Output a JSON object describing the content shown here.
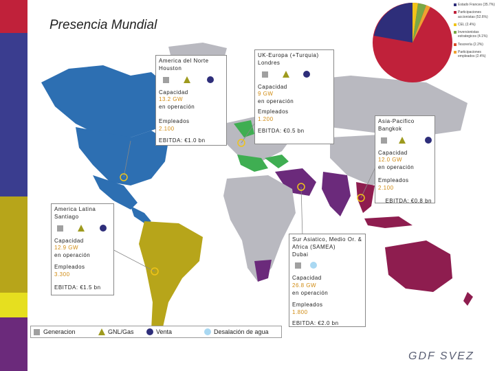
{
  "title": "Presencia Mundial",
  "logo": "GDF SVEZ",
  "colors": {
    "sidebar": "#3a3d8f",
    "north_america": "#2d6fb2",
    "latin_america": "#b7a51a",
    "europe": "#3fae52",
    "asia_pacific": "#8e1d4f",
    "samea": "#6b2a7b",
    "other_land": "#b9b9c0",
    "value_text": "#d08a10"
  },
  "boxes": {
    "north_america": {
      "region": "America del Norte",
      "city": "Houston",
      "cap_label": "Capacidad",
      "cap_value": "13.2 GW",
      "op_label": "en operación",
      "emp_label": "Empleados",
      "emp_value": "2.100",
      "ebitda": "EBITDA: €1.0 bn"
    },
    "uk_europe": {
      "region": "UK-Europa (+Turquia)",
      "city": "Londres",
      "cap_label": "Capacidad",
      "cap_value": "9 GW",
      "op_label": "en operación",
      "emp_label": "Empleados",
      "emp_value": "1.200",
      "ebitda": "EBITDA: €0.5 bn"
    },
    "asia_pacific": {
      "region": "Asia-Pacifico",
      "city": "Bangkok",
      "cap_label": "Capacidad",
      "cap_value": "12.0 GW",
      "op_label": "en operación",
      "emp_label": "Empleados",
      "emp_value": "2.100",
      "ebitda": "EBITDA: €0.8 bn"
    },
    "latin_america": {
      "region": "America Latina",
      "city": "Santiago",
      "cap_label": "Capacidad",
      "cap_value": "12.9 GW",
      "op_label": "en operación",
      "emp_label": "Empleados",
      "emp_value": "3.300",
      "ebitda": "EBITDA: €1.5 bn"
    },
    "samea": {
      "region": "Sur Asiatico, Medio Or. & Africa (SAMEA)",
      "city": "Dubai",
      "cap_label": "Capacidad",
      "cap_value": "26.8 GW",
      "op_label": "en operación",
      "emp_label": "Empleados",
      "emp_value": "1.800",
      "ebitda": "EBITDA: €2.0 bn"
    }
  },
  "pie_legend": [
    {
      "label": "Estado Frances (35.7%)",
      "color": "#2e2e7a"
    },
    {
      "label": "Participaciones accionistas (52.6%)",
      "color": "#c0213a"
    },
    {
      "label": "CEL (2.4%)",
      "color": "#f0c419"
    },
    {
      "label": "Inversionistas estrategicos (4.1%)",
      "color": "#7aa845"
    },
    {
      "label": "Tesorería (2.2%)",
      "color": "#d94b2b"
    },
    {
      "label": "Participaciones empleados (2.4%)",
      "color": "#f0a030"
    }
  ],
  "bottom_legend": {
    "generacion": "Generacion",
    "gnl": "GNL/Gas",
    "venta": "Venta",
    "desalacion": "Desalación de agua"
  }
}
